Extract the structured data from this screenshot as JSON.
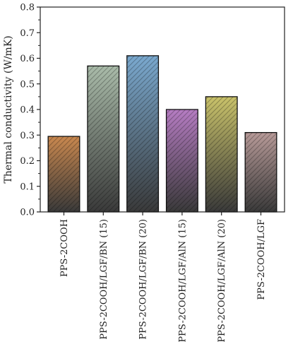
{
  "chart_data": {
    "type": "bar",
    "title": "",
    "xlabel": "",
    "ylabel": "Thermal conductivity (W/mK)",
    "categories": [
      "PPS-2COOH",
      "PPS-2COOH/LGF/BN (15)",
      "PPS-2COOH/LGF/BN (20)",
      "PPS-2COOH/LGF/AlN (15)",
      "PPS-2COOH/LGF/AlN (20)",
      "PPS-2COOH/LGF"
    ],
    "values": [
      0.295,
      0.57,
      0.61,
      0.4,
      0.45,
      0.31
    ],
    "ylim": [
      0,
      0.8
    ],
    "yticks": [
      "0.0",
      "0.1",
      "0.2",
      "0.3",
      "0.4",
      "0.5",
      "0.6",
      "0.7",
      "0.8"
    ],
    "bar_colors": [
      "#c9884f",
      "#a9bba9",
      "#7aa9cf",
      "#b57cc2",
      "#c9c26a",
      "#b79a98"
    ],
    "bar_pattern": "diagonal-hatch-gradient-dark-bottom",
    "grid": false,
    "legend": "none"
  }
}
